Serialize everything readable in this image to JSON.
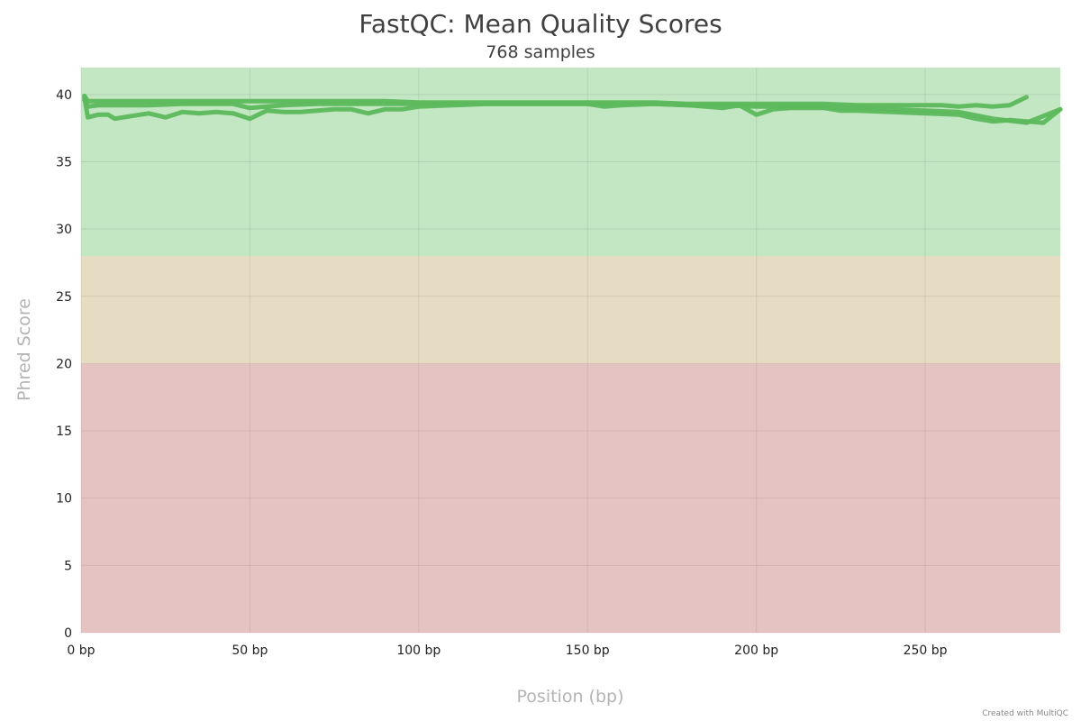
{
  "chart_data": {
    "type": "line",
    "title": "FastQC: Mean Quality Scores",
    "subtitle": "768 samples",
    "xlabel": "Position (bp)",
    "ylabel": "Phred Score",
    "xlim": [
      0,
      290
    ],
    "ylim": [
      0,
      42
    ],
    "x_ticks": [
      0,
      50,
      100,
      150,
      200,
      250
    ],
    "x_tick_labels": [
      "0 bp",
      "50 bp",
      "100 bp",
      "150 bp",
      "200 bp",
      "250 bp"
    ],
    "y_ticks": [
      0,
      5,
      10,
      15,
      20,
      25,
      30,
      35,
      40
    ],
    "y_tick_labels": [
      "0",
      "5",
      "10",
      "15",
      "20",
      "25",
      "30",
      "35",
      "40"
    ],
    "grid": true,
    "bands": [
      {
        "from": 28,
        "to": 42,
        "color": "#c3e6c3"
      },
      {
        "from": 20,
        "to": 28,
        "color": "#e6dcc3"
      },
      {
        "from": 0,
        "to": 20,
        "color": "#e6c3c3"
      }
    ],
    "line_color": "#5cb85c",
    "series": [
      {
        "x": [
          1,
          2,
          5,
          10,
          20,
          30,
          40,
          50,
          60,
          70,
          80,
          90,
          100,
          110,
          120,
          130,
          140,
          150,
          160,
          170,
          180,
          190,
          200,
          210,
          220,
          230,
          240,
          250,
          255,
          260,
          265,
          270,
          275,
          280
        ],
        "y": [
          39.9,
          39.5,
          39.5,
          39.5,
          39.5,
          39.5,
          39.5,
          39.5,
          39.5,
          39.5,
          39.5,
          39.5,
          39.4,
          39.4,
          39.4,
          39.4,
          39.4,
          39.4,
          39.4,
          39.4,
          39.3,
          39.3,
          39.3,
          39.3,
          39.3,
          39.2,
          39.2,
          39.2,
          39.2,
          39.1,
          39.2,
          39.1,
          39.2,
          39.8
        ]
      },
      {
        "x": [
          1,
          2,
          5,
          10,
          20,
          30,
          40,
          45,
          50,
          60,
          70,
          80,
          90,
          100,
          110,
          120,
          130,
          140,
          150,
          160,
          170,
          180,
          190,
          200,
          210,
          220,
          230,
          240,
          250,
          260,
          270,
          280,
          290
        ],
        "y": [
          39.6,
          39.1,
          39.2,
          39.2,
          39.2,
          39.3,
          39.3,
          39.3,
          39.0,
          39.2,
          39.3,
          39.3,
          39.3,
          39.3,
          39.3,
          39.3,
          39.3,
          39.3,
          39.3,
          39.3,
          39.3,
          39.2,
          39.2,
          39.1,
          39.1,
          39.1,
          39.0,
          38.9,
          38.8,
          38.7,
          38.2,
          37.9,
          38.9
        ]
      },
      {
        "x": [
          1,
          2,
          5,
          8,
          10,
          15,
          20,
          25,
          30,
          35,
          40,
          45,
          50,
          55,
          60,
          65,
          70,
          75,
          80,
          85,
          90,
          95,
          100,
          110,
          120,
          130,
          140,
          150,
          155,
          160,
          170,
          180,
          190,
          195,
          200,
          205,
          210,
          220,
          225,
          230,
          240,
          250,
          260,
          265,
          270,
          275,
          280,
          285,
          290
        ],
        "y": [
          39.8,
          38.3,
          38.5,
          38.5,
          38.2,
          38.4,
          38.6,
          38.3,
          38.7,
          38.6,
          38.7,
          38.6,
          38.2,
          38.8,
          38.7,
          38.7,
          38.8,
          38.9,
          38.9,
          38.6,
          38.9,
          38.9,
          39.1,
          39.2,
          39.3,
          39.3,
          39.3,
          39.3,
          39.1,
          39.2,
          39.3,
          39.2,
          39.0,
          39.2,
          38.5,
          38.9,
          39.0,
          39.0,
          38.8,
          38.8,
          38.7,
          38.6,
          38.5,
          38.2,
          38.0,
          38.1,
          38.0,
          37.9,
          38.9
        ]
      }
    ]
  },
  "credit": "Created with MultiQC"
}
